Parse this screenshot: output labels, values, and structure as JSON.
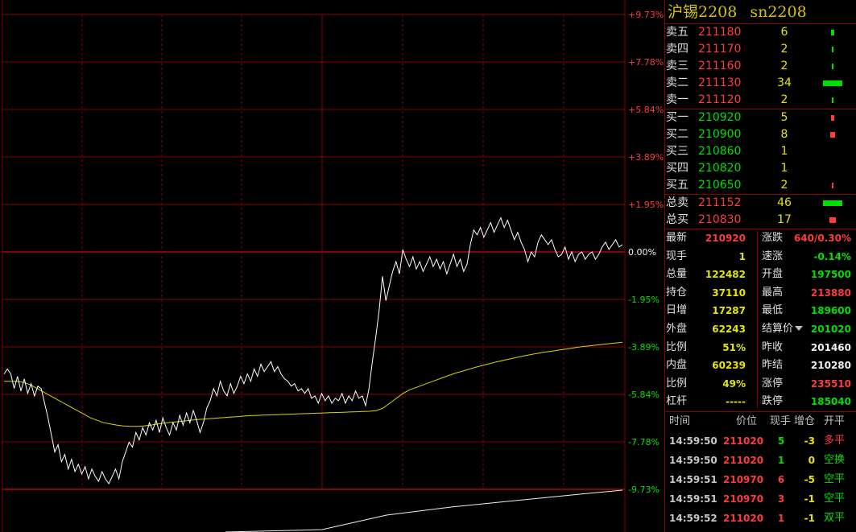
{
  "title": {
    "name": "沪锡2208",
    "code": "sn2208"
  },
  "axis_labels": [
    "+9.73%",
    "+7.78%",
    "+5.84%",
    "+3.89%",
    "+1.95%",
    "0.00%",
    "-1.95%",
    "-3.89%",
    "-5.84%",
    "-7.78%",
    "-9.73%"
  ],
  "colors": {
    "up": "#ff3c3c",
    "down": "#00e000",
    "grid": "#8b0000",
    "price_line": "#ffffff",
    "avg_line": "#d7d700"
  },
  "order_book": {
    "asks": [
      {
        "label": "卖五",
        "price": "211180",
        "vol": "6",
        "bar": 0.2
      },
      {
        "label": "卖四",
        "price": "211170",
        "vol": "2",
        "bar": 0.06
      },
      {
        "label": "卖三",
        "price": "211160",
        "vol": "2",
        "bar": 0.06
      },
      {
        "label": "卖二",
        "price": "211130",
        "vol": "34",
        "bar": 1.0
      },
      {
        "label": "卖一",
        "price": "211120",
        "vol": "2",
        "bar": 0.06
      }
    ],
    "bids": [
      {
        "label": "买一",
        "price": "210920",
        "vol": "5",
        "bar": 0.15
      },
      {
        "label": "买二",
        "price": "210900",
        "vol": "8",
        "bar": 0.24
      },
      {
        "label": "买三",
        "price": "210860",
        "vol": "1",
        "bar": 0
      },
      {
        "label": "买四",
        "price": "210820",
        "vol": "1",
        "bar": 0
      },
      {
        "label": "买五",
        "price": "210650",
        "vol": "2",
        "bar": 0.06
      }
    ],
    "totals": [
      {
        "label": "总卖",
        "price": "211152",
        "vol": "46",
        "color": "#00e000",
        "bar": 1.0
      },
      {
        "label": "总买",
        "price": "210830",
        "vol": "17",
        "color": "#ff3c3c",
        "bar": 0.37
      }
    ]
  },
  "quote": [
    {
      "l1": "最新",
      "v1": "210920",
      "c1": "red",
      "l2": "涨跌",
      "v2": "640/0.30%",
      "c2": "red"
    },
    {
      "l1": "现手",
      "v1": "1",
      "c1": "yellow",
      "l2": "速涨",
      "v2": "-0.14%",
      "c2": "green"
    },
    {
      "l1": "总量",
      "v1": "122482",
      "c1": "yellow",
      "l2": "开盘",
      "v2": "197500",
      "c2": "green"
    },
    {
      "l1": "持仓",
      "v1": "37110",
      "c1": "yellow",
      "l2": "最高",
      "v2": "213880",
      "c2": "red"
    },
    {
      "l1": "日增",
      "v1": "17287",
      "c1": "yellow",
      "l2": "最低",
      "v2": "189600",
      "c2": "green"
    },
    {
      "l1": "外盘",
      "v1": "62243",
      "c1": "yellow",
      "l2": "结算价",
      "v2": "201020",
      "c2": "green"
    },
    {
      "l1": "比例",
      "v1": "51%",
      "c1": "yellow",
      "l2": "昨收",
      "v2": "201460",
      "c2": "white"
    },
    {
      "l1": "内盘",
      "v1": "60239",
      "c1": "yellow",
      "l2": "昨结",
      "v2": "210280",
      "c2": "white"
    },
    {
      "l1": "比例",
      "v1": "49%",
      "c1": "yellow",
      "l2": "涨停",
      "v2": "235510",
      "c2": "red"
    },
    {
      "l1": "杠杆",
      "v1": "-----",
      "c1": "yellow",
      "l2": "跌停",
      "v2": "185040",
      "c2": "green"
    }
  ],
  "settle_dropdown_icon": "caret-down-icon",
  "ticks": {
    "headers": {
      "time": "时间",
      "price": "价位",
      "hand": "现手",
      "oi": "增仓",
      "type": "开平"
    },
    "rows": [
      {
        "time": "14:59:50",
        "price": "211020",
        "hand": "5",
        "hand_c": "green",
        "oi": "-3",
        "type": "多平",
        "type_c": "red"
      },
      {
        "time": "14:59:50",
        "price": "211020",
        "hand": "1",
        "hand_c": "green",
        "oi": "0",
        "type": "空换",
        "type_c": "green"
      },
      {
        "time": "14:59:51",
        "price": "210970",
        "hand": "6",
        "hand_c": "red",
        "oi": "-5",
        "type": "空平",
        "type_c": "green"
      },
      {
        "time": "14:59:51",
        "price": "210970",
        "hand": "3",
        "hand_c": "red",
        "oi": "-1",
        "type": "空平",
        "type_c": "green"
      },
      {
        "time": "14:59:52",
        "price": "211020",
        "hand": "1",
        "hand_c": "red",
        "oi": "-1",
        "type": "双平",
        "type_c": "green"
      }
    ]
  },
  "chart_data": {
    "type": "line",
    "ylim": [
      -9.73,
      9.73
    ],
    "y_unit": "%",
    "series": [
      {
        "values": [
          -5.0,
          -4.8,
          -5.0,
          -5.6,
          -5.1,
          -5.7,
          -5.2,
          -5.8,
          -5.4,
          -5.9,
          -5.5,
          -5.6,
          -6.2,
          -6.8,
          -7.5,
          -8.2,
          -7.9,
          -8.6,
          -8.3,
          -8.9,
          -8.5,
          -9.0,
          -8.7,
          -9.1,
          -8.8,
          -9.3,
          -8.9,
          -9.2,
          -9.4,
          -9.0,
          -9.3,
          -9.5,
          -9.2,
          -8.9,
          -9.3,
          -8.6,
          -8.2,
          -7.8,
          -8.0,
          -7.4,
          -7.7,
          -7.2,
          -7.5,
          -7.0,
          -7.3,
          -6.9,
          -7.4,
          -6.8,
          -7.2,
          -7.5,
          -7.0,
          -7.3,
          -6.7,
          -7.1,
          -6.6,
          -7.0,
          -6.5,
          -6.9,
          -7.4,
          -7.0,
          -6.4,
          -6.1,
          -5.6,
          -5.9,
          -5.3,
          -5.7,
          -5.9,
          -5.4,
          -5.8,
          -5.5,
          -5.1,
          -5.4,
          -5.0,
          -5.3,
          -4.8,
          -5.1,
          -4.6,
          -4.9,
          -4.7,
          -4.5,
          -4.9,
          -4.7,
          -5.0,
          -5.2,
          -5.3,
          -5.5,
          -5.4,
          -5.7,
          -5.6,
          -5.8,
          -5.6,
          -6.0,
          -5.9,
          -6.2,
          -5.8,
          -6.1,
          -5.9,
          -6.2,
          -6.0,
          -6.1,
          -5.8,
          -6.2,
          -5.9,
          -6.1,
          -5.7,
          -6.0,
          -5.9,
          -6.3,
          -5.6,
          -4.5,
          -3.5,
          -2.4,
          -1.0,
          -2.0,
          -1.4,
          -0.8,
          -0.4,
          -0.9,
          0.1,
          -0.3,
          -0.6,
          -0.2,
          -0.7,
          -0.4,
          -0.8,
          -0.5,
          -0.2,
          -0.6,
          -0.3,
          -0.7,
          -0.4,
          -0.9,
          -0.5,
          -0.1,
          -0.6,
          -0.3,
          -0.8,
          -0.5,
          0.3,
          0.9,
          0.7,
          1.0,
          0.6,
          0.9,
          1.2,
          0.8,
          1.1,
          1.4,
          1.0,
          1.3,
          0.9,
          0.5,
          0.8,
          0.4,
          0.1,
          -0.4,
          0.0,
          -0.2,
          0.4,
          0.7,
          0.5,
          0.3,
          0.5,
          0.1,
          -0.2,
          -0.1,
          0.2,
          -0.3,
          0.0,
          -0.4,
          -0.1,
          0.0,
          -0.3,
          -0.1,
          0.0,
          -0.3,
          -0.1,
          0.2,
          0.4,
          0.1,
          0.3,
          0.5,
          0.2,
          0.3
        ]
      },
      {
        "values": [
          -5.3,
          -5.3,
          -5.3,
          -5.35,
          -5.45,
          -5.6,
          -5.75,
          -5.9,
          -6.05,
          -6.2,
          -6.35,
          -6.5,
          -6.65,
          -6.8,
          -6.9,
          -7.0,
          -7.05,
          -7.1,
          -7.13,
          -7.15,
          -7.15,
          -7.13,
          -7.1,
          -7.06,
          -7.02,
          -6.99,
          -6.96,
          -6.93,
          -6.9,
          -6.87,
          -6.85,
          -6.83,
          -6.81,
          -6.79,
          -6.77,
          -6.75,
          -6.73,
          -6.71,
          -6.7,
          -6.69,
          -6.68,
          -6.67,
          -6.66,
          -6.65,
          -6.64,
          -6.63,
          -6.62,
          -6.61,
          -6.6,
          -6.59,
          -6.58,
          -6.57,
          -6.56,
          -6.55,
          -6.54,
          -6.53,
          -6.5,
          -6.4,
          -6.2,
          -6.0,
          -5.8,
          -5.65,
          -5.55,
          -5.45,
          -5.35,
          -5.25,
          -5.15,
          -5.05,
          -4.96,
          -4.88,
          -4.8,
          -4.72,
          -4.65,
          -4.58,
          -4.51,
          -4.45,
          -4.39,
          -4.33,
          -4.27,
          -4.22,
          -4.17,
          -4.12,
          -4.08,
          -4.04,
          -4.0,
          -3.96,
          -3.92,
          -3.88,
          -3.85,
          -3.82,
          -3.79,
          -3.76,
          -3.73,
          -3.7
        ]
      }
    ]
  }
}
